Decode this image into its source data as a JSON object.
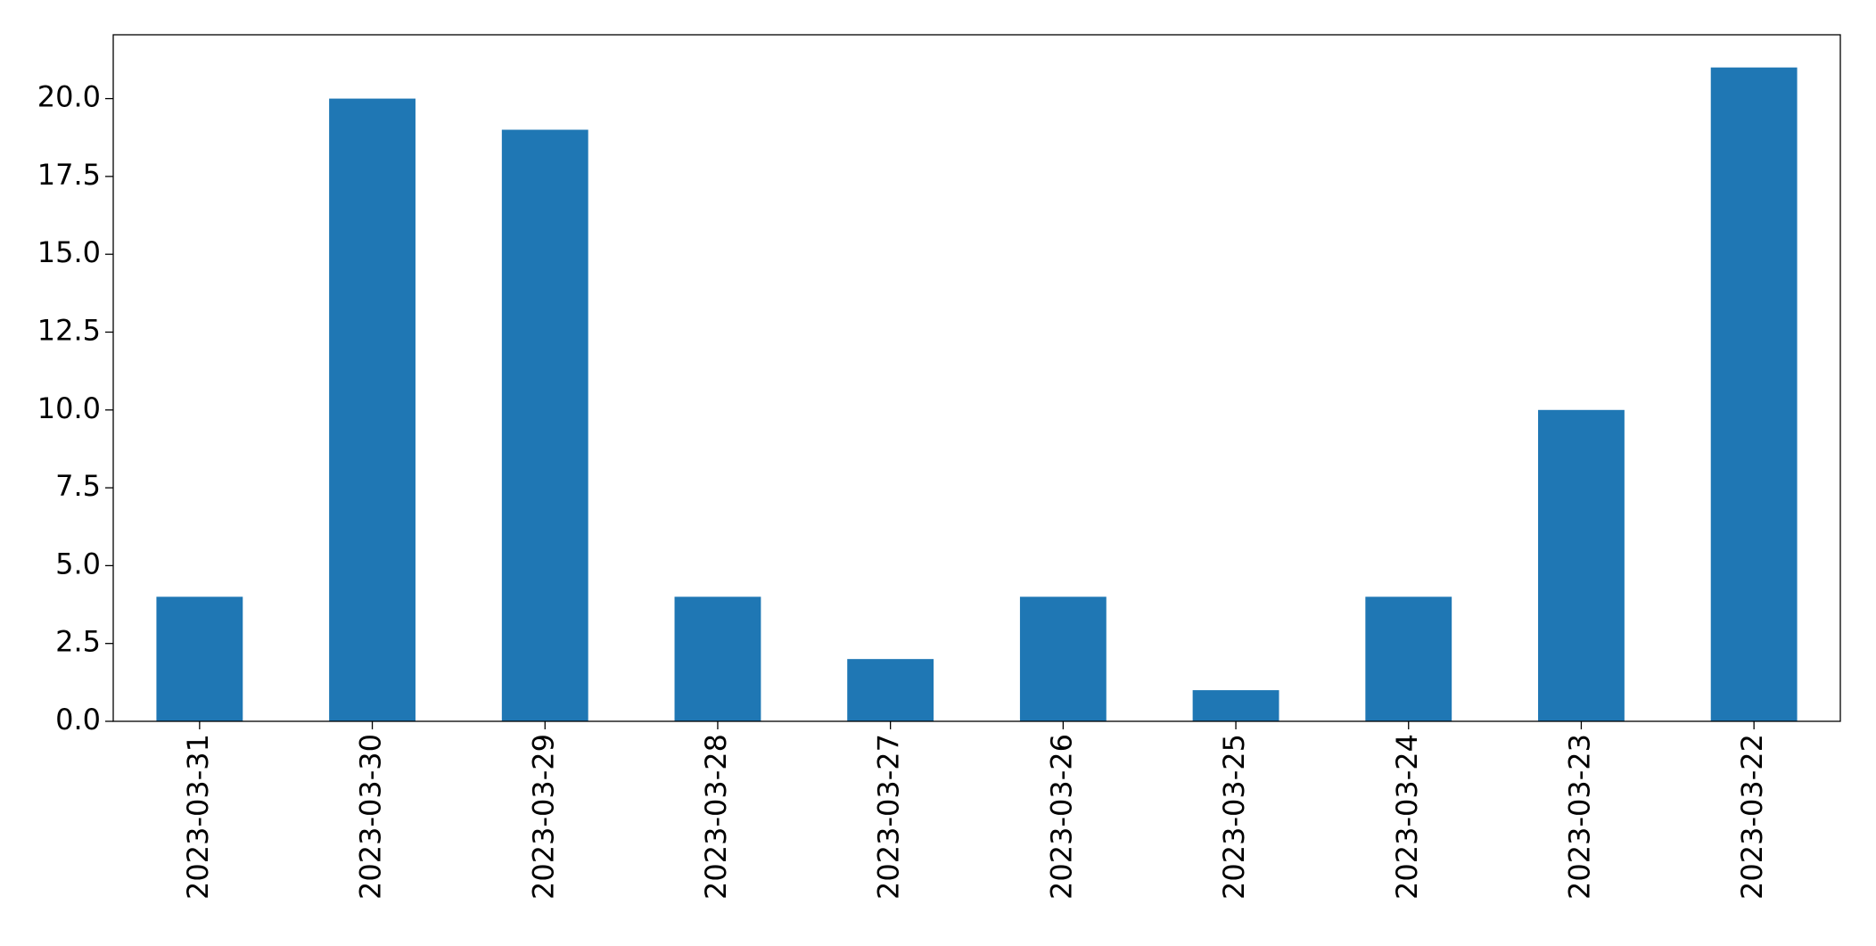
{
  "chart_data": {
    "type": "bar",
    "categories": [
      "2023-03-31",
      "2023-03-30",
      "2023-03-29",
      "2023-03-28",
      "2023-03-27",
      "2023-03-26",
      "2023-03-25",
      "2023-03-24",
      "2023-03-23",
      "2023-03-22"
    ],
    "values": [
      4,
      20,
      19,
      4,
      2,
      4,
      1,
      4,
      10,
      21
    ],
    "color": "#1f77b4",
    "ylim": [
      0,
      22.05
    ],
    "yticks": [
      {
        "value": 0,
        "label": "0.0"
      },
      2.5,
      {
        "value": 5,
        "label": "5.0"
      },
      7.5,
      {
        "value": 10,
        "label": "10.0"
      },
      12.5,
      {
        "value": 15,
        "label": "15.0"
      },
      17.5,
      {
        "value": 20,
        "label": "20.0"
      }
    ],
    "grid": false
  }
}
